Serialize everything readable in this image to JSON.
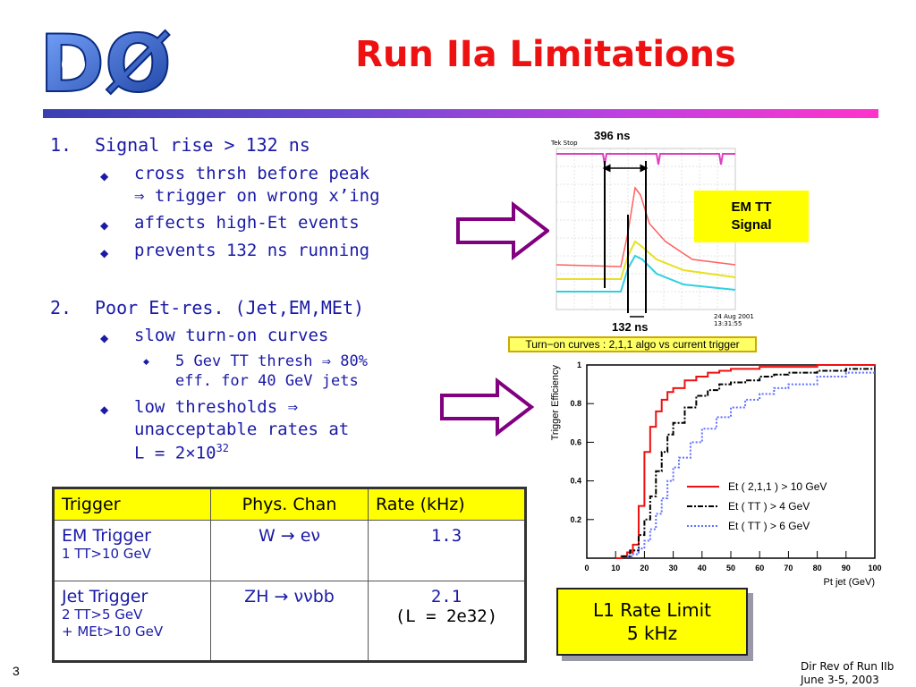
{
  "title": "Run IIa Limitations",
  "logo": {
    "text": "DØ"
  },
  "list": {
    "item1": {
      "num": "1.",
      "head": "Signal rise > 132 ns",
      "bullets": [
        {
          "line1": "cross thrsh before peak",
          "line2": "⇒ trigger on wrong x’ing"
        },
        {
          "line1": "affects high-Et events"
        },
        {
          "line1": "prevents 132 ns running"
        }
      ]
    },
    "item2": {
      "num": "2.",
      "head": "Poor Et-res. (Jet,EM,MEt)",
      "bullets": [
        {
          "line1": "slow turn-on curves"
        },
        {
          "line1": "low thresholds ⇒",
          "line2": "unacceptable rates at",
          "line3": "L = 2×10",
          "line3_sup": "32"
        }
      ],
      "subbullet": {
        "line1": "5 Gev TT thresh ⇒ 80%",
        "line2": "eff. for 40 GeV jets"
      }
    }
  },
  "scope": {
    "label_top": "396 ns",
    "label_bottom": "132 ns",
    "tag": "EM TT\nSignal",
    "tag_line1": "EM TT",
    "tag_line2": "Signal",
    "header_text": "Tek Stop",
    "footer_text1": "24 Aug 2001",
    "footer_text2": "13:31:55",
    "colors": {
      "magenta": "#e040c0",
      "red": "#ff6060",
      "yellow": "#e8e020",
      "cyan": "#30d0e0",
      "grid": "#c8c8c8"
    }
  },
  "turnon_banner": "Turn−on curves : 2,1,1 algo vs current trigger",
  "chart_data": {
    "type": "line",
    "title": "",
    "xlabel": "Pt jet (GeV)",
    "ylabel": "Trigger Efficiency",
    "xlim": [
      0,
      100
    ],
    "ylim": [
      0,
      1
    ],
    "xticks": [
      0,
      10,
      20,
      30,
      40,
      50,
      60,
      70,
      80,
      90,
      100
    ],
    "yticks": [
      0.2,
      0.4,
      0.6,
      0.8,
      1
    ],
    "grid": false,
    "legend_position": "right",
    "series": [
      {
        "name": "Et ( 2,1,1 ) > 10 GeV",
        "color": "#ee1111",
        "style": "solid",
        "x": [
          10,
          12,
          14,
          16,
          18,
          20,
          22,
          24,
          26,
          28,
          30,
          34,
          38,
          42,
          46,
          50,
          55,
          60,
          65,
          70,
          80,
          90,
          100
        ],
        "y": [
          0.0,
          0.01,
          0.03,
          0.07,
          0.27,
          0.55,
          0.68,
          0.76,
          0.82,
          0.86,
          0.88,
          0.92,
          0.94,
          0.96,
          0.97,
          0.98,
          0.98,
          0.99,
          0.99,
          0.99,
          1.0,
          1.0,
          1.0
        ]
      },
      {
        "name": "Et ( TT ) > 4 GeV",
        "color": "#000000",
        "style": "dashdot",
        "x": [
          12,
          15,
          18,
          20,
          22,
          24,
          26,
          28,
          30,
          34,
          38,
          42,
          46,
          50,
          55,
          60,
          65,
          70,
          80,
          90,
          100
        ],
        "y": [
          0.01,
          0.04,
          0.12,
          0.2,
          0.32,
          0.45,
          0.55,
          0.64,
          0.7,
          0.78,
          0.84,
          0.87,
          0.9,
          0.91,
          0.92,
          0.94,
          0.95,
          0.96,
          0.97,
          0.98,
          0.98
        ]
      },
      {
        "name": "Et ( TT ) > 6 GeV",
        "color": "#6070ff",
        "style": "dotted",
        "x": [
          14,
          16,
          18,
          20,
          22,
          24,
          26,
          28,
          30,
          32,
          36,
          40,
          45,
          50,
          55,
          60,
          65,
          70,
          80,
          90,
          100
        ],
        "y": [
          0.01,
          0.02,
          0.05,
          0.09,
          0.15,
          0.23,
          0.31,
          0.4,
          0.47,
          0.52,
          0.6,
          0.67,
          0.73,
          0.78,
          0.82,
          0.85,
          0.88,
          0.9,
          0.94,
          0.96,
          0.97
        ]
      }
    ]
  },
  "table": {
    "headers": [
      "Trigger",
      "Phys. Chan",
      "Rate (kHz)"
    ],
    "rows": [
      {
        "trigger": "EM Trigger",
        "trigger_sub1": "1 TT>10 GeV",
        "trigger_sub2": "",
        "chan": "W → eν",
        "rate": "1.3",
        "rate_sub": ""
      },
      {
        "trigger": "Jet Trigger",
        "trigger_sub1": "2 TT>5 GeV",
        "trigger_sub2": "+ MEt>10 GeV",
        "chan": "ZH → ννbb",
        "rate": "2.1",
        "rate_sub": "(L = 2e32)"
      }
    ]
  },
  "limit_box": {
    "line1": "L1 Rate Limit",
    "line2": "5 kHz"
  },
  "page_number": "3",
  "footer": {
    "line1": "Dir Rev of Run IIb",
    "line2": "June 3-5, 2003"
  },
  "colors": {
    "title": "#ee1111",
    "text": "#1a1aa6",
    "highlight": "#ffff00",
    "arrow": "#800080"
  }
}
